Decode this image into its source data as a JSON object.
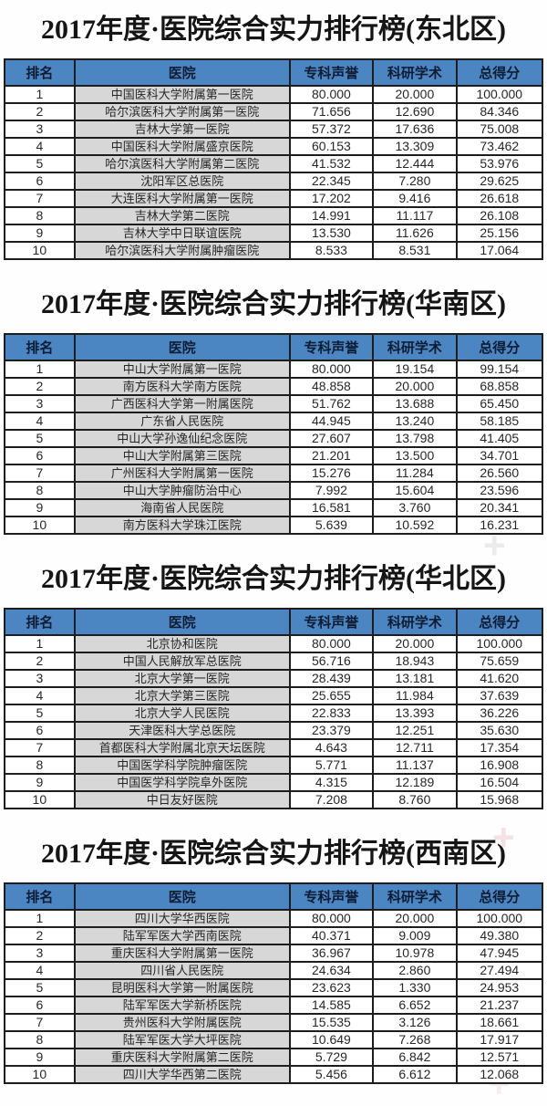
{
  "colors": {
    "header_bg": "#4b86c3",
    "header_text": "#0e1c33",
    "hospital_cell_bg": "#d7d7d7",
    "border": "#1d1d1d"
  },
  "decor": {
    "watermark_glyph": "+"
  },
  "headers": [
    "排名",
    "医院",
    "专科声誉",
    "科研学术",
    "总得分"
  ],
  "sections": [
    {
      "title": "2017年度·医院综合实力排行榜(东北区)",
      "rows": [
        {
          "rank": "1",
          "hospital": "中国医科大学附属第一医院",
          "specialty": "80.000",
          "research": "20.000",
          "total": "100.000"
        },
        {
          "rank": "2",
          "hospital": "哈尔滨医科大学附属第一医院",
          "specialty": "71.656",
          "research": "12.690",
          "total": "84.346"
        },
        {
          "rank": "3",
          "hospital": "吉林大学第一医院",
          "specialty": "57.372",
          "research": "17.636",
          "total": "75.008"
        },
        {
          "rank": "4",
          "hospital": "中国医科大学附属盛京医院",
          "specialty": "60.153",
          "research": "13.309",
          "total": "73.462"
        },
        {
          "rank": "5",
          "hospital": "哈尔滨医科大学附属第二医院",
          "specialty": "41.532",
          "research": "12.444",
          "total": "53.976"
        },
        {
          "rank": "6",
          "hospital": "沈阳军区总医院",
          "specialty": "22.345",
          "research": "7.280",
          "total": "29.625"
        },
        {
          "rank": "7",
          "hospital": "大连医科大学附属第一医院",
          "specialty": "17.202",
          "research": "9.416",
          "total": "26.618"
        },
        {
          "rank": "8",
          "hospital": "吉林大学第二医院",
          "specialty": "14.991",
          "research": "11.117",
          "total": "26.108"
        },
        {
          "rank": "9",
          "hospital": "吉林大学中日联谊医院",
          "specialty": "13.530",
          "research": "11.626",
          "total": "25.156"
        },
        {
          "rank": "10",
          "hospital": "哈尔滨医科大学附属肿瘤医院",
          "specialty": "8.533",
          "research": "8.531",
          "total": "17.064"
        }
      ]
    },
    {
      "title": "2017年度·医院综合实力排行榜(华南区)",
      "rows": [
        {
          "rank": "1",
          "hospital": "中山大学附属第一医院",
          "specialty": "80.000",
          "research": "19.154",
          "total": "99.154"
        },
        {
          "rank": "2",
          "hospital": "南方医科大学南方医院",
          "specialty": "48.858",
          "research": "20.000",
          "total": "68.858"
        },
        {
          "rank": "3",
          "hospital": "广西医科大学第一附属医院",
          "specialty": "51.762",
          "research": "13.688",
          "total": "65.450"
        },
        {
          "rank": "4",
          "hospital": "广东省人民医院",
          "specialty": "44.945",
          "research": "13.240",
          "total": "58.185"
        },
        {
          "rank": "5",
          "hospital": "中山大学孙逸仙纪念医院",
          "specialty": "27.607",
          "research": "13.798",
          "total": "41.405"
        },
        {
          "rank": "6",
          "hospital": "中山大学附属第三医院",
          "specialty": "21.201",
          "research": "13.500",
          "total": "34.701"
        },
        {
          "rank": "7",
          "hospital": "广州医科大学附属第一医院",
          "specialty": "15.276",
          "research": "11.284",
          "total": "26.560"
        },
        {
          "rank": "8",
          "hospital": "中山大学肿瘤防治中心",
          "specialty": "7.992",
          "research": "15.604",
          "total": "23.596"
        },
        {
          "rank": "9",
          "hospital": "海南省人民医院",
          "specialty": "16.581",
          "research": "3.760",
          "total": "20.341"
        },
        {
          "rank": "10",
          "hospital": "南方医科大学珠江医院",
          "specialty": "5.639",
          "research": "10.592",
          "total": "16.231"
        }
      ]
    },
    {
      "title": "2017年度·医院综合实力排行榜(华北区)",
      "rows": [
        {
          "rank": "1",
          "hospital": "北京协和医院",
          "specialty": "80.000",
          "research": "20.000",
          "total": "100.000"
        },
        {
          "rank": "2",
          "hospital": "中国人民解放军总医院",
          "specialty": "56.716",
          "research": "18.943",
          "total": "75.659"
        },
        {
          "rank": "3",
          "hospital": "北京大学第一医院",
          "specialty": "28.439",
          "research": "13.181",
          "total": "41.620"
        },
        {
          "rank": "4",
          "hospital": "北京大学第三医院",
          "specialty": "25.655",
          "research": "11.984",
          "total": "37.639"
        },
        {
          "rank": "5",
          "hospital": "北京大学人民医院",
          "specialty": "22.833",
          "research": "13.393",
          "total": "36.226"
        },
        {
          "rank": "6",
          "hospital": "天津医科大学总医院",
          "specialty": "23.379",
          "research": "12.251",
          "total": "35.630"
        },
        {
          "rank": "7",
          "hospital": "首都医科大学附属北京天坛医院",
          "specialty": "4.643",
          "research": "12.711",
          "total": "17.354"
        },
        {
          "rank": "8",
          "hospital": "中国医学科学院肿瘤医院",
          "specialty": "5.771",
          "research": "11.137",
          "total": "16.908"
        },
        {
          "rank": "9",
          "hospital": "中国医学科学院阜外医院",
          "specialty": "4.315",
          "research": "12.189",
          "total": "16.504"
        },
        {
          "rank": "10",
          "hospital": "中日友好医院",
          "specialty": "7.208",
          "research": "8.760",
          "total": "15.968"
        }
      ]
    },
    {
      "title": "2017年度·医院综合实力排行榜(西南区)",
      "rows": [
        {
          "rank": "1",
          "hospital": "四川大学华西医院",
          "specialty": "80.000",
          "research": "20.000",
          "total": "100.000"
        },
        {
          "rank": "2",
          "hospital": "陆军军医大学西南医院",
          "specialty": "40.371",
          "research": "9.009",
          "total": "49.380"
        },
        {
          "rank": "3",
          "hospital": "重庆医科大学附属第一医院",
          "specialty": "36.967",
          "research": "10.978",
          "total": "47.945"
        },
        {
          "rank": "4",
          "hospital": "四川省人民医院",
          "specialty": "24.634",
          "research": "2.860",
          "total": "27.494"
        },
        {
          "rank": "5",
          "hospital": "昆明医科大学第一附属医院",
          "specialty": "23.623",
          "research": "1.330",
          "total": "24.953"
        },
        {
          "rank": "6",
          "hospital": "陆军军医大学新桥医院",
          "specialty": "14.585",
          "research": "6.652",
          "total": "21.237"
        },
        {
          "rank": "7",
          "hospital": "贵州医科大学附属医院",
          "specialty": "15.535",
          "research": "3.126",
          "total": "18.661"
        },
        {
          "rank": "8",
          "hospital": "陆军军医大学大坪医院",
          "specialty": "10.649",
          "research": "7.268",
          "total": "17.917"
        },
        {
          "rank": "9",
          "hospital": "重庆医科大学附属第二医院",
          "specialty": "5.729",
          "research": "6.842",
          "total": "12.571"
        },
        {
          "rank": "10",
          "hospital": "四川大学华西第二医院",
          "specialty": "5.456",
          "research": "6.612",
          "total": "12.068"
        }
      ]
    }
  ]
}
